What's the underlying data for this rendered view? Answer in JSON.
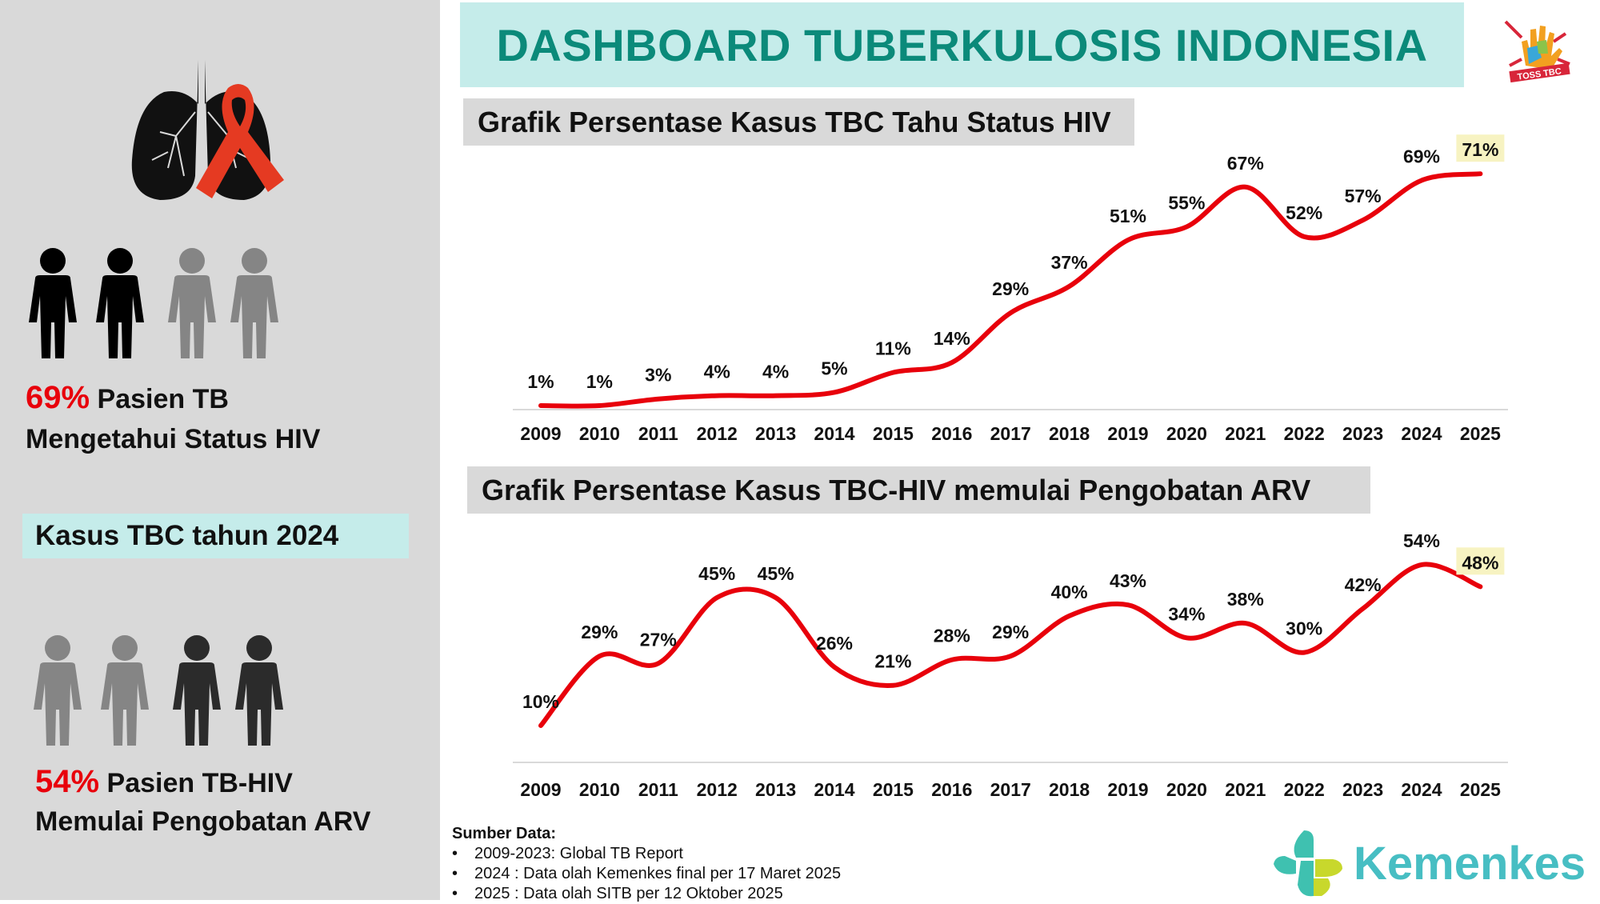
{
  "header": {
    "title": "DASHBOARD TUBERKULOSIS INDONESIA",
    "logo_text": "TOSS TBC"
  },
  "left_panel": {
    "stat1": {
      "percent": "69%",
      "line1": "Pasien TB",
      "line2": "Mengetahui Status HIV"
    },
    "section_label": "Kasus TBC tahun 2024",
    "stat2": {
      "percent": "54%",
      "line1": "Pasien TB-HIV",
      "line2": "Memulai Pengobatan ARV"
    }
  },
  "sources": {
    "heading": "Sumber Data:",
    "items": [
      "2009-2023: Global TB Report",
      "2024 : Data olah Kemenkes final per 17 Maret 2025",
      "2025 : Data olah SITB per 12 Oktober 2025"
    ]
  },
  "footer_logo": {
    "text": "Kemenkes"
  },
  "colors": {
    "line": "#e8000b",
    "teal": "#0b8a7a",
    "banner_bg": "#c5ecea",
    "highlight": "#f7f3c2"
  },
  "chart_data": [
    {
      "type": "line",
      "title": "Grafik Persentase Kasus TBC Tahu Status HIV",
      "categories": [
        "2009",
        "2010",
        "2011",
        "2012",
        "2013",
        "2014",
        "2015",
        "2016",
        "2017",
        "2018",
        "2019",
        "2020",
        "2021",
        "2022",
        "2023",
        "2024",
        "2025"
      ],
      "values": [
        1,
        1,
        3,
        4,
        4,
        5,
        11,
        14,
        29,
        37,
        51,
        55,
        67,
        52,
        57,
        69,
        71
      ],
      "labels": [
        "1%",
        "1%",
        "3%",
        "4%",
        "4%",
        "5%",
        "11%",
        "14%",
        "29%",
        "37%",
        "51%",
        "55%",
        "67%",
        "52%",
        "57%",
        "69%",
        "71%"
      ],
      "highlight_index": 16,
      "ylim": [
        0,
        75
      ],
      "unit": "%"
    },
    {
      "type": "line",
      "title": "Grafik Persentase Kasus TBC-HIV memulai Pengobatan ARV",
      "categories": [
        "2009",
        "2010",
        "2011",
        "2012",
        "2013",
        "2014",
        "2015",
        "2016",
        "2017",
        "2018",
        "2019",
        "2020",
        "2021",
        "2022",
        "2023",
        "2024",
        "2025"
      ],
      "values": [
        10,
        29,
        27,
        45,
        45,
        26,
        21,
        28,
        29,
        40,
        43,
        34,
        38,
        30,
        42,
        54,
        48
      ],
      "labels": [
        "10%",
        "29%",
        "27%",
        "45%",
        "45%",
        "26%",
        "21%",
        "28%",
        "29%",
        "40%",
        "43%",
        "34%",
        "38%",
        "30%",
        "42%",
        "54%",
        "48%"
      ],
      "highlight_index": 16,
      "ylim": [
        0,
        60
      ],
      "unit": "%"
    }
  ]
}
